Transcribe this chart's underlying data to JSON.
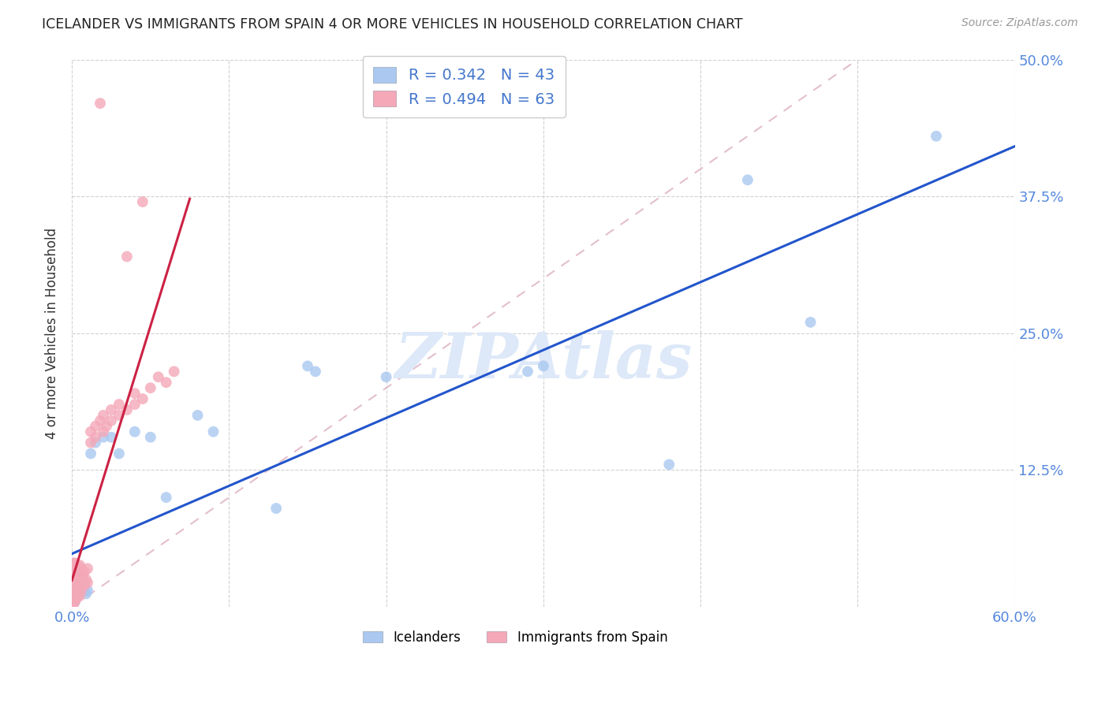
{
  "title": "ICELANDER VS IMMIGRANTS FROM SPAIN 4 OR MORE VEHICLES IN HOUSEHOLD CORRELATION CHART",
  "source": "Source: ZipAtlas.com",
  "ylabel": "4 or more Vehicles in Household",
  "xlim": [
    0.0,
    0.6
  ],
  "ylim": [
    0.0,
    0.5
  ],
  "icelander_R": "0.342",
  "icelander_N": "43",
  "spain_R": "0.494",
  "spain_N": "63",
  "icelander_dot_color": "#aac8f0",
  "spain_dot_color": "#f4a8b8",
  "icelander_line_color": "#2255cc",
  "spain_line_color": "#cc2244",
  "diagonal_color": "#e0b8c8",
  "background_color": "#ffffff",
  "grid_color": "#cccccc",
  "tick_color": "#5588dd",
  "title_color": "#222222",
  "source_color": "#999999",
  "ylabel_color": "#333333",
  "watermark_color": "#dde8f8",
  "legend_text_color": "#4477cc",
  "icelander_points_x": [
    0.001,
    0.001,
    0.001,
    0.001,
    0.001,
    0.001,
    0.002,
    0.002,
    0.002,
    0.002,
    0.002,
    0.003,
    0.003,
    0.003,
    0.004,
    0.004,
    0.005,
    0.005,
    0.006,
    0.007,
    0.008,
    0.009,
    0.01,
    0.012,
    0.015,
    0.02,
    0.025,
    0.03,
    0.04,
    0.05,
    0.06,
    0.08,
    0.09,
    0.15,
    0.155,
    0.29,
    0.3,
    0.38,
    0.47,
    0.55,
    0.2,
    0.43,
    0.13
  ],
  "icelander_points_y": [
    0.005,
    0.01,
    0.015,
    0.02,
    0.025,
    0.03,
    0.005,
    0.012,
    0.018,
    0.025,
    0.035,
    0.01,
    0.02,
    0.03,
    0.015,
    0.025,
    0.015,
    0.022,
    0.02,
    0.025,
    0.015,
    0.012,
    0.015,
    0.14,
    0.15,
    0.155,
    0.155,
    0.14,
    0.16,
    0.155,
    0.1,
    0.175,
    0.16,
    0.22,
    0.215,
    0.215,
    0.22,
    0.13,
    0.26,
    0.43,
    0.21,
    0.39,
    0.09
  ],
  "spain_points_x": [
    0.001,
    0.001,
    0.001,
    0.001,
    0.001,
    0.001,
    0.001,
    0.001,
    0.001,
    0.001,
    0.002,
    0.002,
    0.002,
    0.002,
    0.002,
    0.002,
    0.002,
    0.003,
    0.003,
    0.003,
    0.003,
    0.003,
    0.004,
    0.004,
    0.004,
    0.004,
    0.005,
    0.005,
    0.005,
    0.005,
    0.006,
    0.006,
    0.006,
    0.007,
    0.007,
    0.008,
    0.008,
    0.009,
    0.01,
    0.01,
    0.012,
    0.012,
    0.015,
    0.015,
    0.018,
    0.02,
    0.02,
    0.022,
    0.025,
    0.025,
    0.03,
    0.03,
    0.035,
    0.04,
    0.04,
    0.045,
    0.05,
    0.055,
    0.06,
    0.065,
    0.018,
    0.045,
    0.035
  ],
  "spain_points_y": [
    0.002,
    0.005,
    0.008,
    0.012,
    0.016,
    0.02,
    0.025,
    0.03,
    0.035,
    0.04,
    0.005,
    0.01,
    0.015,
    0.02,
    0.025,
    0.032,
    0.04,
    0.008,
    0.015,
    0.022,
    0.03,
    0.038,
    0.012,
    0.018,
    0.025,
    0.035,
    0.01,
    0.018,
    0.028,
    0.038,
    0.015,
    0.025,
    0.035,
    0.02,
    0.03,
    0.02,
    0.032,
    0.025,
    0.022,
    0.035,
    0.15,
    0.16,
    0.155,
    0.165,
    0.17,
    0.16,
    0.175,
    0.165,
    0.17,
    0.18,
    0.175,
    0.185,
    0.18,
    0.185,
    0.195,
    0.19,
    0.2,
    0.21,
    0.205,
    0.215,
    0.46,
    0.37,
    0.32
  ]
}
